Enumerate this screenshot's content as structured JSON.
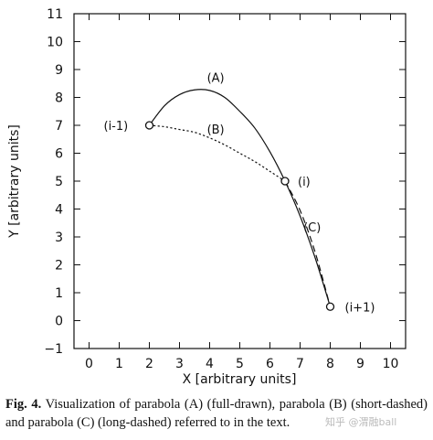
{
  "chart_data": {
    "type": "line",
    "xlabel": "X [arbitrary units]",
    "ylabel": "Y [arbitrary units]",
    "xlim": [
      -0.5,
      10.5
    ],
    "ylim": [
      -1,
      11
    ],
    "x_ticks": [
      0,
      1,
      2,
      3,
      4,
      5,
      6,
      7,
      8,
      9,
      10
    ],
    "y_ticks": [
      -1,
      0,
      1,
      2,
      3,
      4,
      5,
      6,
      7,
      8,
      9,
      10,
      11
    ],
    "grid": false,
    "points": [
      {
        "label": "(i-1)",
        "x": 2.0,
        "y": 7.0
      },
      {
        "label": "(i)",
        "x": 6.5,
        "y": 5.0
      },
      {
        "label": "(i+1)",
        "x": 8.0,
        "y": 0.5
      }
    ],
    "series": [
      {
        "name": "(A)",
        "style": "solid",
        "x": [
          2.0,
          2.5,
          3.0,
          3.5,
          4.0,
          4.5,
          5.0,
          5.5,
          6.0,
          6.5,
          7.0,
          7.5,
          8.0
        ],
        "y": [
          7.0,
          7.7,
          8.1,
          8.27,
          8.25,
          8.0,
          7.5,
          6.9,
          6.05,
          5.0,
          3.75,
          2.25,
          0.5
        ]
      },
      {
        "name": "(B)",
        "style": "short-dashed",
        "x": [
          2.0,
          2.5,
          3.0,
          3.5,
          4.0,
          4.5,
          5.0,
          5.5,
          6.0,
          6.5
        ],
        "y": [
          7.0,
          6.95,
          6.85,
          6.75,
          6.55,
          6.3,
          6.0,
          5.7,
          5.35,
          5.0
        ]
      },
      {
        "name": "(C)",
        "style": "long-dashed",
        "x": [
          6.5,
          7.0,
          7.5,
          8.0
        ],
        "y": [
          5.0,
          3.95,
          2.45,
          0.5
        ]
      }
    ]
  },
  "caption": {
    "label": "Fig. 4.",
    "text": "Visualization of parabola (A) (full-drawn), parabola (B) (short-dashed) and parabola (C) (long-dashed) referred to in the text."
  },
  "watermark": "知乎 @渭融ball"
}
